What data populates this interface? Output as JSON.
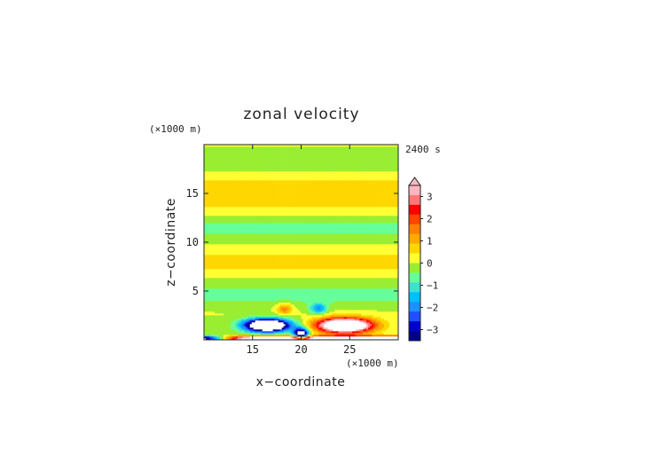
{
  "chart_data": {
    "type": "heatmap",
    "title": "zonal velocity",
    "xlabel": "x−coordinate",
    "ylabel": "z−coordinate",
    "x_unit": "(×1000 m)",
    "y_unit": "(×1000 m)",
    "time_label": "2400 s",
    "xlim": [
      10,
      30
    ],
    "ylim": [
      0,
      20
    ],
    "x_ticks": [
      "15",
      "20",
      "25"
    ],
    "y_ticks": [
      "5",
      "10",
      "15"
    ],
    "colorbar": {
      "ticks": [
        "3",
        "2",
        "1",
        "0",
        "−1",
        "−2",
        "−3"
      ],
      "levels": [
        -3.5,
        3.5
      ],
      "extend": "max",
      "colors": [
        "#00008b",
        "#0000cd",
        "#1e50ff",
        "#1e90ff",
        "#00bfff",
        "#40e0d0",
        "#66ff99",
        "#99ee33",
        "#ffff33",
        "#ffd700",
        "#ffaa00",
        "#ff7f00",
        "#ff4500",
        "#ff0000",
        "#ff7777",
        "#ffb6c1"
      ]
    },
    "field_description": "near-zero alternating bands aloft; strong negative jet near surface for x<20 km and strong positive jet for x>20 km below 3 km height",
    "features": [
      {
        "x": 16.5,
        "z": 1.5,
        "u_min": -3.5
      },
      {
        "x": 24.5,
        "z": 1.5,
        "u_max": 3.5
      },
      {
        "x": 20,
        "z": 0.3,
        "u_min": -3.5
      },
      {
        "x": 14,
        "z": 0.2,
        "u_max": 3.5
      }
    ]
  }
}
